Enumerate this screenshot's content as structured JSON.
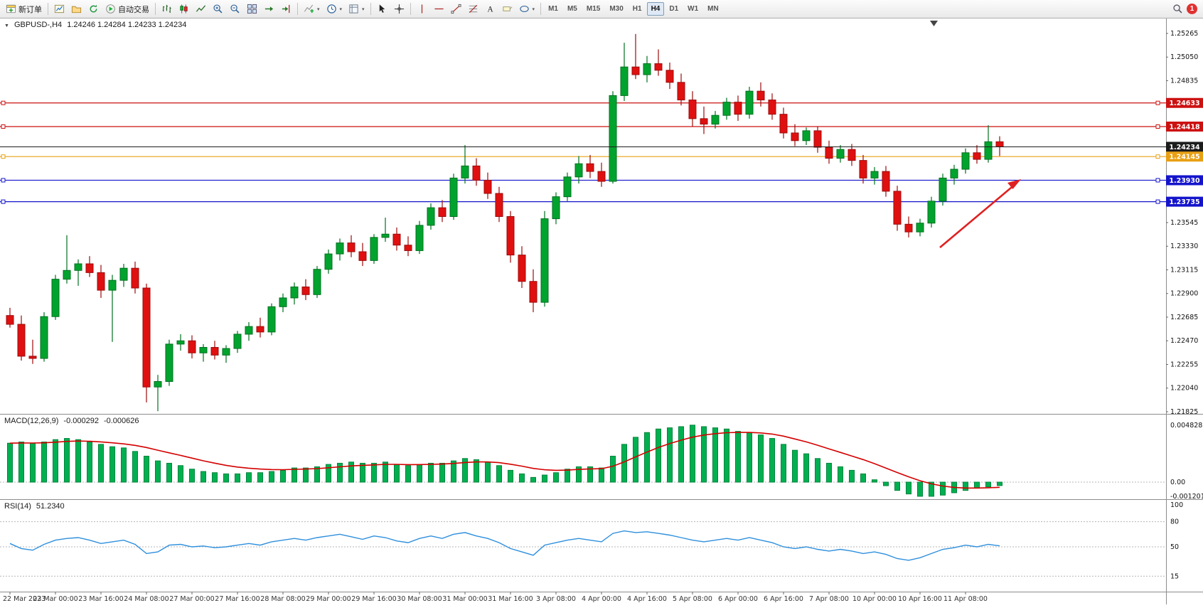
{
  "toolbar": {
    "new_order_label": "新订单",
    "auto_trading_label": "自动交易",
    "timeframes": [
      "M1",
      "M5",
      "M15",
      "M30",
      "H1",
      "H4",
      "D1",
      "W1",
      "MN"
    ],
    "active_timeframe": "H4",
    "notification_count": "1"
  },
  "chart": {
    "symbol": "GBPUSD-,H4",
    "ohlc_readout": "1.24246 1.24284 1.24233 1.24234",
    "colors": {
      "bull": "#00a32e",
      "bear": "#e01010",
      "bull_border": "#00701f",
      "bear_border": "#9c0b0b"
    },
    "levels": [
      {
        "price": 1.24633,
        "label": "1.24633",
        "color": "#cc1111",
        "kind": "resistance"
      },
      {
        "price": 1.24418,
        "label": "1.24418",
        "color": "#cc1111",
        "kind": "resistance"
      },
      {
        "price": 1.24234,
        "label": "1.24234",
        "color": "#1c1c1c",
        "kind": "current-price",
        "style": "current"
      },
      {
        "price": 1.24145,
        "label": "1.24145",
        "color": "#e8a013",
        "kind": "pivot"
      },
      {
        "price": 1.2393,
        "label": "1.23930",
        "color": "#1414cc",
        "kind": "support"
      },
      {
        "price": 1.23735,
        "label": "1.23735",
        "color": "#1414cc",
        "kind": "support"
      }
    ],
    "price_axis": {
      "min_tick": 1.21825,
      "step": 0.00215,
      "count": 17,
      "decimals": 5
    }
  },
  "macd": {
    "label": "MACD(12,26,9)",
    "value_main": "-0.000292",
    "value_signal": "-0.000626",
    "axis_labels": [
      "0.004828",
      "0.00",
      "-0.001201"
    ],
    "hist_color": "#00b050",
    "hist_border": "#00843c",
    "signal_color": "#d40000"
  },
  "rsi": {
    "label": "RSI(14)",
    "value": "51.2340",
    "axis_labels": [
      "100",
      "80",
      "50",
      "15"
    ],
    "levels": [
      80,
      50,
      15
    ],
    "line_color": "#2e8fdd"
  },
  "chart_data": {
    "type": "candlestick+indicators",
    "symbol": "GBPUSD",
    "timeframe": "H4",
    "ylim": [
      1.218,
      1.2541
    ],
    "label_every": 4,
    "x_labels": [
      "22 Mar 2023",
      "23 Mar 00:00",
      "23 Mar 16:00",
      "24 Mar 08:00",
      "27 Mar 00:00",
      "27 Mar 16:00",
      "28 Mar 08:00",
      "29 Mar 00:00",
      "29 Mar 16:00",
      "30 Mar 08:00",
      "31 Mar 00:00",
      "31 Mar 16:00",
      "3 Apr 08:00",
      "4 Apr 00:00",
      "4 Apr 16:00",
      "5 Apr 08:00",
      "6 Apr 00:00",
      "6 Apr 16:00",
      "7 Apr 08:00",
      "10 Apr 00:00",
      "10 Apr 16:00",
      "11 Apr 08:00"
    ],
    "candles": [
      [
        1.227,
        1.2277,
        1.2259,
        1.2262
      ],
      [
        1.2262,
        1.227,
        1.2229,
        1.2233
      ],
      [
        1.2233,
        1.2248,
        1.2226,
        1.2231
      ],
      [
        1.2231,
        1.2273,
        1.2228,
        1.2269
      ],
      [
        1.2269,
        1.2307,
        1.2266,
        1.2303
      ],
      [
        1.2303,
        1.2343,
        1.2299,
        1.2311
      ],
      [
        1.2311,
        1.2321,
        1.2297,
        1.2317
      ],
      [
        1.2317,
        1.2324,
        1.2305,
        1.2309
      ],
      [
        1.2309,
        1.2316,
        1.2286,
        1.2293
      ],
      [
        1.2293,
        1.2307,
        1.2246,
        1.2302
      ],
      [
        1.2302,
        1.2317,
        1.2296,
        1.2313
      ],
      [
        1.2313,
        1.2319,
        1.229,
        1.2295
      ],
      [
        1.2295,
        1.2299,
        1.2191,
        1.2205
      ],
      [
        1.2205,
        1.2216,
        1.2183,
        1.221
      ],
      [
        1.221,
        1.2248,
        1.2206,
        1.2244
      ],
      [
        1.2244,
        1.2253,
        1.2238,
        1.2247
      ],
      [
        1.2247,
        1.2252,
        1.2231,
        1.2236
      ],
      [
        1.2236,
        1.2244,
        1.2228,
        1.2241
      ],
      [
        1.2241,
        1.2247,
        1.223,
        1.2234
      ],
      [
        1.2234,
        1.2243,
        1.2227,
        1.224
      ],
      [
        1.224,
        1.2256,
        1.2236,
        1.2253
      ],
      [
        1.2253,
        1.2264,
        1.2247,
        1.226
      ],
      [
        1.226,
        1.2268,
        1.225,
        1.2255
      ],
      [
        1.2255,
        1.2281,
        1.2252,
        1.2278
      ],
      [
        1.2278,
        1.229,
        1.2273,
        1.2286
      ],
      [
        1.2286,
        1.23,
        1.228,
        1.2296
      ],
      [
        1.2296,
        1.2303,
        1.2284,
        1.2289
      ],
      [
        1.2289,
        1.2315,
        1.2286,
        1.2312
      ],
      [
        1.2312,
        1.233,
        1.2308,
        1.2326
      ],
      [
        1.2326,
        1.234,
        1.232,
        1.2336
      ],
      [
        1.2336,
        1.2343,
        1.2323,
        1.2328
      ],
      [
        1.2328,
        1.2336,
        1.2315,
        1.232
      ],
      [
        1.232,
        1.2344,
        1.2317,
        1.2341
      ],
      [
        1.2341,
        1.2359,
        1.2337,
        1.2344
      ],
      [
        1.2344,
        1.235,
        1.2329,
        1.2334
      ],
      [
        1.2334,
        1.2342,
        1.2324,
        1.2329
      ],
      [
        1.2329,
        1.2356,
        1.2326,
        1.2352
      ],
      [
        1.2352,
        1.2372,
        1.2348,
        1.2368
      ],
      [
        1.2368,
        1.2375,
        1.2355,
        1.236
      ],
      [
        1.236,
        1.2399,
        1.2357,
        1.2395
      ],
      [
        1.2395,
        1.2425,
        1.239,
        1.2406
      ],
      [
        1.2406,
        1.2413,
        1.2388,
        1.2393
      ],
      [
        1.2393,
        1.24,
        1.2376,
        1.2381
      ],
      [
        1.2381,
        1.2387,
        1.2355,
        1.236
      ],
      [
        1.236,
        1.2365,
        1.2318,
        1.2325
      ],
      [
        1.2325,
        1.2333,
        1.2295,
        1.2301
      ],
      [
        1.2301,
        1.2312,
        1.2273,
        1.2282
      ],
      [
        1.2282,
        1.2365,
        1.2278,
        1.2358
      ],
      [
        1.2358,
        1.2382,
        1.2353,
        1.2378
      ],
      [
        1.2378,
        1.24,
        1.2374,
        1.2396
      ],
      [
        1.2396,
        1.2415,
        1.239,
        1.2408
      ],
      [
        1.2408,
        1.2416,
        1.2395,
        1.2401
      ],
      [
        1.2401,
        1.2409,
        1.2387,
        1.2392
      ],
      [
        1.2392,
        1.2474,
        1.239,
        1.247
      ],
      [
        1.247,
        1.2518,
        1.2465,
        1.2496
      ],
      [
        1.2496,
        1.2526,
        1.2485,
        1.2489
      ],
      [
        1.2489,
        1.2506,
        1.2482,
        1.2499
      ],
      [
        1.2499,
        1.2512,
        1.2488,
        1.2493
      ],
      [
        1.2493,
        1.25,
        1.2476,
        1.2482
      ],
      [
        1.2482,
        1.249,
        1.2461,
        1.2466
      ],
      [
        1.2466,
        1.2474,
        1.2442,
        1.2449
      ],
      [
        1.2449,
        1.246,
        1.2435,
        1.2444
      ],
      [
        1.2444,
        1.2456,
        1.244,
        1.2452
      ],
      [
        1.2452,
        1.2468,
        1.2448,
        1.2464
      ],
      [
        1.2464,
        1.247,
        1.2447,
        1.2453
      ],
      [
        1.2453,
        1.2478,
        1.2449,
        1.2474
      ],
      [
        1.2474,
        1.2482,
        1.246,
        1.2466
      ],
      [
        1.2466,
        1.2472,
        1.2448,
        1.2453
      ],
      [
        1.2453,
        1.2459,
        1.2431,
        1.2436
      ],
      [
        1.2436,
        1.2444,
        1.2424,
        1.2429
      ],
      [
        1.2429,
        1.2441,
        1.2425,
        1.2438
      ],
      [
        1.2438,
        1.2442,
        1.2418,
        1.2423
      ],
      [
        1.2423,
        1.2429,
        1.2408,
        1.2413
      ],
      [
        1.2413,
        1.2425,
        1.2409,
        1.2421
      ],
      [
        1.2421,
        1.2426,
        1.2406,
        1.2411
      ],
      [
        1.2411,
        1.2416,
        1.239,
        1.2395
      ],
      [
        1.2395,
        1.2405,
        1.2389,
        1.2401
      ],
      [
        1.2401,
        1.2406,
        1.2378,
        1.2383
      ],
      [
        1.2383,
        1.2388,
        1.2347,
        1.2353
      ],
      [
        1.2353,
        1.236,
        1.2341,
        1.2346
      ],
      [
        1.2346,
        1.2358,
        1.2342,
        1.2354
      ],
      [
        1.2354,
        1.2378,
        1.235,
        1.2374
      ],
      [
        1.2374,
        1.2399,
        1.237,
        1.2395
      ],
      [
        1.2395,
        1.2407,
        1.2389,
        1.2403
      ],
      [
        1.2403,
        1.2422,
        1.2399,
        1.2418
      ],
      [
        1.2418,
        1.2425,
        1.2408,
        1.2412
      ],
      [
        1.2412,
        1.2443,
        1.2409,
        1.2428
      ],
      [
        1.2428,
        1.2433,
        1.2415,
        1.24234
      ]
    ],
    "macd_main": [
      0.0033,
      0.0034,
      0.0033,
      0.0034,
      0.0036,
      0.0037,
      0.0036,
      0.0034,
      0.0032,
      0.003,
      0.0029,
      0.0026,
      0.0022,
      0.0018,
      0.0016,
      0.0014,
      0.0011,
      0.0009,
      0.0008,
      0.0007,
      0.0007,
      0.0008,
      0.0008,
      0.0009,
      0.001,
      0.0012,
      0.0012,
      0.0013,
      0.0015,
      0.0016,
      0.0017,
      0.0016,
      0.0016,
      0.0017,
      0.0015,
      0.0014,
      0.0015,
      0.0016,
      0.0016,
      0.0018,
      0.002,
      0.0019,
      0.0017,
      0.0014,
      0.001,
      0.0007,
      0.0004,
      0.0006,
      0.0008,
      0.0011,
      0.0013,
      0.0013,
      0.0012,
      0.0022,
      0.0032,
      0.0038,
      0.0042,
      0.0045,
      0.0046,
      0.0047,
      0.004828,
      0.0047,
      0.0046,
      0.0045,
      0.0043,
      0.0042,
      0.004,
      0.0037,
      0.0032,
      0.0027,
      0.0024,
      0.002,
      0.0016,
      0.0013,
      0.001,
      0.0007,
      0.0002,
      -0.0003,
      -0.0007,
      -0.001,
      -0.0012,
      -0.001201,
      -0.0011,
      -0.0009,
      -0.0007,
      -0.0005,
      -0.0004,
      -0.000292
    ],
    "rsi_values": [
      54,
      48,
      46,
      53,
      58,
      60,
      61,
      58,
      54,
      56,
      58,
      53,
      42,
      44,
      52,
      53,
      50,
      51,
      49,
      50,
      52,
      54,
      52,
      56,
      58,
      60,
      58,
      61,
      63,
      65,
      62,
      59,
      63,
      61,
      57,
      55,
      60,
      63,
      60,
      65,
      67,
      63,
      60,
      55,
      48,
      44,
      40,
      52,
      55,
      58,
      60,
      58,
      56,
      66,
      69,
      67,
      68,
      66,
      64,
      61,
      58,
      56,
      58,
      60,
      58,
      61,
      58,
      55,
      50,
      48,
      50,
      47,
      45,
      47,
      45,
      42,
      44,
      41,
      36,
      34,
      37,
      42,
      47,
      49,
      52,
      50,
      53,
      51.2
    ]
  }
}
